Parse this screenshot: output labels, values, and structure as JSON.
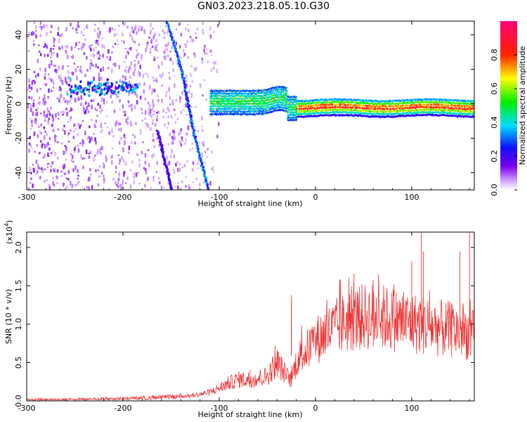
{
  "figure": {
    "title": "GN03.2023.218.05.10.G30"
  },
  "chart_data": [
    {
      "type": "heatmap",
      "title": "GN03.2023.218.05.10.G30",
      "xlabel": "Height of straight line (km)",
      "ylabel": "Frequency (Hz)",
      "xlim": [
        -300,
        165
      ],
      "ylim": [
        -50,
        48
      ],
      "x_ticks": [
        -300,
        -200,
        -100,
        0,
        100
      ],
      "x_tick_labels": [
        "-300",
        "-200",
        "-100",
        "0",
        "100"
      ],
      "y_ticks": [
        -40,
        -20,
        0,
        20,
        40
      ],
      "y_tick_labels": [
        "-40",
        "-20",
        "0",
        "20",
        "40"
      ],
      "colorbar": {
        "label": "Normalized spectral amplitude",
        "range": [
          0,
          1
        ],
        "ticks": [
          0.0,
          0.2,
          0.4,
          0.6,
          0.8
        ],
        "tick_labels": [
          "0.0",
          "0.2",
          "0.4",
          "0.6",
          "0.8"
        ],
        "colormap": "rainbow (white - violet - blue - cyan - green - yellow - red - magenta)"
      },
      "features": [
        {
          "name": "diagonal trace A",
          "points": [
            [
              -155,
              48
            ],
            [
              -140,
              20
            ],
            [
              -128,
              -15
            ],
            [
              -112,
              -50
            ]
          ],
          "amplitude": 0.3
        },
        {
          "name": "diagonal trace B",
          "points": [
            [
              -165,
              -15
            ],
            [
              -150,
              -50
            ]
          ],
          "amplitude": 0.2
        },
        {
          "name": "scattered noise cluster",
          "x_range": [
            -260,
            -185
          ],
          "frequency_center": 10,
          "amplitude": 0.25
        },
        {
          "name": "main signal band",
          "x_range": [
            -110,
            165
          ],
          "frequency_center": 0,
          "amplitude_peak": 0.9
        }
      ],
      "grid": false
    },
    {
      "type": "line",
      "xlabel": "Height of straight line (km)",
      "ylabel": "SNR (10 * v/v)",
      "y_scale_label": "(x10",
      "y_scale_exponent": "4",
      "y_scale_suffix": ")",
      "xlim": [
        -300,
        165
      ],
      "ylim": [
        0,
        2.2
      ],
      "x_ticks": [
        -300,
        -200,
        -100,
        0,
        100
      ],
      "x_tick_labels": [
        "-300",
        "-200",
        "-100",
        "0",
        "100"
      ],
      "y_ticks": [
        0.0,
        0.5,
        1.0,
        1.5,
        2.0
      ],
      "y_tick_labels": [
        "0.0",
        "0.5",
        "1.0",
        "1.5",
        "2.0"
      ],
      "series": [
        {
          "color": "#ee3333",
          "envelope_x": [
            -300,
            -250,
            -200,
            -150,
            -125,
            -110,
            -100,
            -90,
            -80,
            -70,
            -60,
            -50,
            -45,
            -40,
            -35,
            -30,
            -25,
            -20,
            -15,
            -10,
            0,
            10,
            20,
            30,
            40,
            50,
            60,
            70,
            80,
            90,
            100,
            110,
            120,
            130,
            140,
            150,
            160,
            165
          ],
          "envelope_y": [
            0.02,
            0.02,
            0.03,
            0.05,
            0.08,
            0.12,
            0.18,
            0.25,
            0.3,
            0.3,
            0.32,
            0.35,
            0.45,
            0.55,
            0.45,
            0.35,
            0.3,
            0.55,
            0.65,
            0.7,
            0.85,
            0.95,
            1.02,
            1.1,
            1.15,
            1.18,
            1.2,
            1.18,
            1.15,
            1.12,
            1.1,
            1.08,
            1.05,
            1.02,
            1.0,
            0.98,
            0.95,
            0.9
          ],
          "peaks": [
            [
              -68,
              0.4
            ],
            [
              -42,
              0.72
            ],
            [
              -25,
              1.3
            ],
            [
              -25,
              1.38
            ],
            [
              25,
              1.58
            ],
            [
              40,
              1.66
            ],
            [
              60,
              1.58
            ],
            [
              100,
              1.82
            ],
            [
              110,
              2.2
            ],
            [
              112,
              1.95
            ],
            [
              150,
              1.95
            ],
            [
              160,
              2.2
            ]
          ]
        }
      ],
      "grid": false
    }
  ]
}
